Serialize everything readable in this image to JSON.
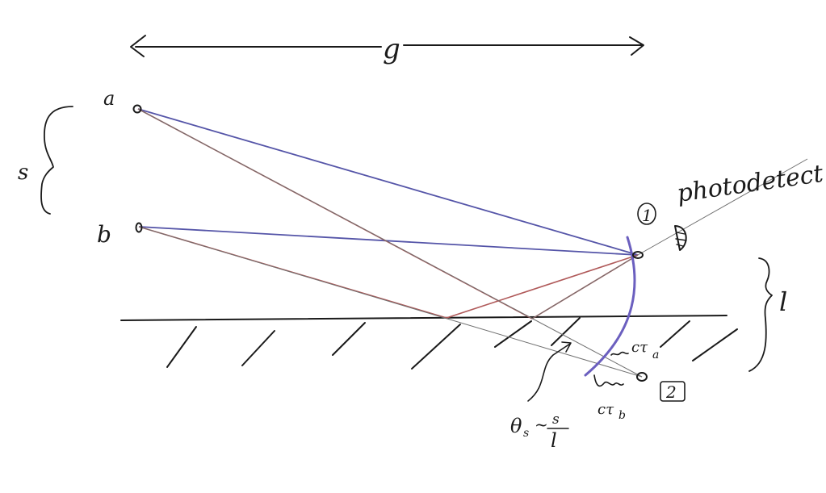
{
  "labels": {
    "distance_g": "g",
    "source_a": "a",
    "source_b": "b",
    "separation_s": "s",
    "detector_1": "1",
    "detector_2": "2",
    "photodetector": "photodetect",
    "height_l": "l",
    "path_ctau_a": "cτ",
    "path_ctau_a_sub": "a",
    "path_ctau_b": "cτ",
    "path_ctau_b_sub": "b",
    "theta_lhs": "θ",
    "theta_sub": "s",
    "theta_op": "~",
    "theta_num": "s",
    "theta_den": "l"
  },
  "colors": {
    "ink": "#1a1a1a",
    "direct_ray": "#5555a8",
    "reflected_ray": "#b05a5a",
    "thin_ray": "#707070",
    "wavefront": "#6b5fbf"
  }
}
